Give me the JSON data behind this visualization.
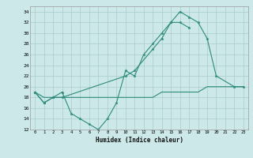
{
  "color": "#2d8b7a",
  "bg_color": "#cce8e8",
  "grid_color": "#aacccc",
  "xlabel": "Humidex (Indice chaleur)",
  "xlim": [
    -0.5,
    23.5
  ],
  "ylim": [
    12,
    35
  ],
  "yticks": [
    12,
    14,
    16,
    18,
    20,
    22,
    24,
    26,
    28,
    30,
    32,
    34
  ],
  "xticks": [
    0,
    1,
    2,
    3,
    4,
    5,
    6,
    7,
    8,
    9,
    10,
    11,
    12,
    13,
    14,
    15,
    16,
    17,
    18,
    19,
    20,
    21,
    22,
    23
  ],
  "line1_x": [
    0,
    1,
    2,
    3,
    4,
    5,
    6,
    7,
    8,
    9,
    10,
    11,
    12,
    13,
    14,
    15,
    16,
    17
  ],
  "line1_y": [
    19,
    17,
    18,
    19,
    15,
    14,
    13,
    12,
    14,
    17,
    23,
    22,
    26,
    28,
    30,
    32,
    32,
    31
  ],
  "line2_x": [
    0,
    1,
    2,
    3,
    10,
    11,
    13,
    14,
    15,
    16,
    17,
    18,
    19,
    20,
    22,
    23
  ],
  "line2_y": [
    19,
    17,
    18,
    18,
    22,
    23,
    27,
    29,
    32,
    34,
    33,
    32,
    29,
    22,
    20,
    20
  ],
  "line3_x": [
    0,
    1,
    2,
    3,
    4,
    5,
    6,
    7,
    8,
    9,
    10,
    11,
    12,
    13,
    14,
    15,
    16,
    17,
    18,
    19,
    20,
    21,
    22,
    23
  ],
  "line3_y": [
    19,
    18,
    18,
    18,
    18,
    18,
    18,
    18,
    18,
    18,
    18,
    18,
    18,
    18,
    19,
    19,
    19,
    19,
    19,
    20,
    20,
    20,
    20,
    20
  ]
}
